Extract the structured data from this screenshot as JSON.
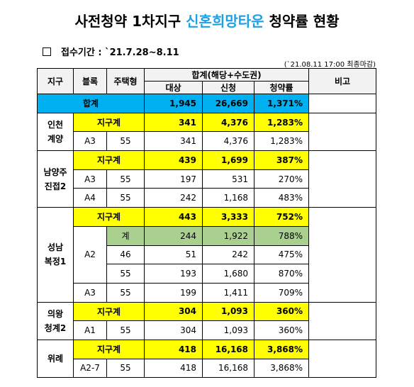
{
  "title": {
    "before": "사전청약 1차지구 ",
    "highlight": "신혼희망타운",
    "after": " 청약률 현황"
  },
  "period": "접수기간 : `21.7.28~8.11",
  "note": "(`21.08.11 17:00 최종마감)",
  "table": {
    "headers": {
      "district": "지구",
      "block": "블록",
      "type": "주택형",
      "sum": "합계(해당+수도권)",
      "target": "대상",
      "applied": "신청",
      "rate": "청약률",
      "remark": "비고"
    },
    "total": {
      "label": "합계",
      "target": "1,945",
      "applied": "26,669",
      "rate": "1,371%"
    },
    "groups": [
      {
        "district": [
          "인천",
          "계양"
        ],
        "rows": [
          {
            "district_total": "지구계",
            "target": "341",
            "applied": "4,376",
            "rate": "1,283%"
          },
          {
            "block": "A3",
            "type": "55",
            "target": "341",
            "applied": "4,376",
            "rate": "1,283%"
          }
        ]
      },
      {
        "district": [
          "남양주",
          "진접2"
        ],
        "rows": [
          {
            "district_total": "지구계",
            "target": "439",
            "applied": "1,699",
            "rate": "387%"
          },
          {
            "block": "A3",
            "type": "55",
            "target": "197",
            "applied": "531",
            "rate": "270%"
          },
          {
            "block": "A4",
            "type": "55",
            "target": "242",
            "applied": "1,168",
            "rate": "483%"
          }
        ]
      },
      {
        "district": [
          "성남",
          "복정1"
        ],
        "rows": [
          {
            "district_total": "지구계",
            "target": "443",
            "applied": "3,333",
            "rate": "752%"
          },
          {
            "block": "A2",
            "block_total": "계",
            "target": "244",
            "applied": "1,922",
            "rate": "788%"
          },
          {
            "type": "46",
            "target": "51",
            "applied": "242",
            "rate": "475%"
          },
          {
            "type": "55",
            "target": "193",
            "applied": "1,680",
            "rate": "870%"
          },
          {
            "block": "A3",
            "type": "55",
            "target": "199",
            "applied": "1,411",
            "rate": "709%"
          }
        ]
      },
      {
        "district": [
          "의왕",
          "청계2"
        ],
        "rows": [
          {
            "district_total": "지구계",
            "target": "304",
            "applied": "1,093",
            "rate": "360%"
          },
          {
            "block": "A1",
            "type": "55",
            "target": "304",
            "applied": "1,093",
            "rate": "360%"
          }
        ]
      },
      {
        "district": [
          "위례"
        ],
        "rows": [
          {
            "district_total": "지구계",
            "target": "418",
            "applied": "16,168",
            "rate": "3,868%"
          },
          {
            "block": "A2-7",
            "type": "55",
            "target": "418",
            "applied": "16,168",
            "rate": "3,868%"
          }
        ]
      }
    ]
  }
}
